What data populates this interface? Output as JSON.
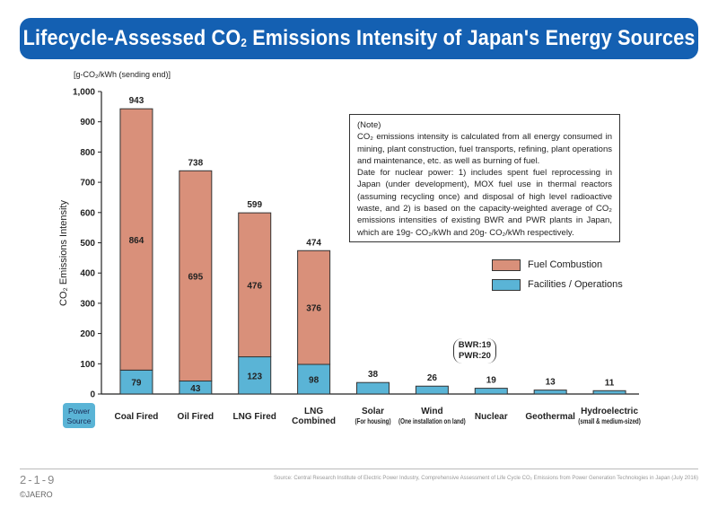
{
  "banner": {
    "title_prefix": "Lifecycle-Assessed CO",
    "title_sub": "2",
    "title_suffix": " Emissions Intensity of Japan's Energy Sources"
  },
  "chart_data": {
    "type": "bar",
    "stacked": true,
    "unit_label": "[g-CO₂/kWh (sending end)]",
    "ylabel": "CO₂ Emissions Intensity",
    "ylim": [
      0,
      1000
    ],
    "yticks": [
      "0",
      "100",
      "200",
      "300",
      "400",
      "500",
      "600",
      "700",
      "800",
      "900",
      "1,000"
    ],
    "xaxis_title": [
      "Power",
      "Source"
    ],
    "categories": [
      {
        "name": "Coal Fired",
        "sub": ""
      },
      {
        "name": "Oil Fired",
        "sub": ""
      },
      {
        "name": "LNG Fired",
        "sub": ""
      },
      {
        "name": "LNG",
        "sub": "Combined"
      },
      {
        "name": "Solar",
        "sub": "(For housing)"
      },
      {
        "name": "Wind",
        "sub": "(One installation on land)"
      },
      {
        "name": "Nuclear",
        "sub": ""
      },
      {
        "name": "Geothermal",
        "sub": ""
      },
      {
        "name": "Hydroelectric",
        "sub": "(small & medium-sized)"
      }
    ],
    "series": [
      {
        "name": "Facilities / Operations",
        "color": "#5ab4d6",
        "values": [
          79,
          43,
          123,
          98,
          38,
          26,
          19,
          13,
          11
        ]
      },
      {
        "name": "Fuel Combustion",
        "color": "#d9907a",
        "values": [
          864,
          695,
          476,
          376,
          0,
          0,
          0,
          0,
          0
        ]
      }
    ],
    "totals": [
      943,
      738,
      599,
      474,
      38,
      26,
      19,
      13,
      11
    ],
    "legend_position": "right",
    "grid": false
  },
  "note": {
    "heading": "(Note)",
    "para1": "CO₂ emissions intensity is calculated from all energy consumed in mining, plant construction, fuel transports, refining, plant operations and maintenance, etc. as well as burning of fuel.",
    "para2": "Date for nuclear power: 1) includes spent fuel reprocessing in Japan (under development), MOX fuel use in thermal reactors (assuming recycling once) and disposal of high level radioactive waste, and 2) is based on the capacity-weighted average of CO₂ emissions intensities of existing BWR and PWR plants in Japan, which are 19g- CO₂/kWh and 20g- CO₂/kWh respectively."
  },
  "annotation": {
    "line1": "BWR:19",
    "line2": "PWR:20"
  },
  "footer": {
    "page_number": "2-1-9",
    "copyright": "©JAERO",
    "source": "Source: Central Research Institute of Electric Power Industry, Comprehensive Assessment of Life Cycle CO₂ Emissions from Power Generation Technologies in Japan (July 2016)"
  },
  "colors": {
    "banner": "#1460b2",
    "fuel": "#d9907a",
    "facilities": "#5ab4d6",
    "power_source_box": "#5ab4d6"
  }
}
